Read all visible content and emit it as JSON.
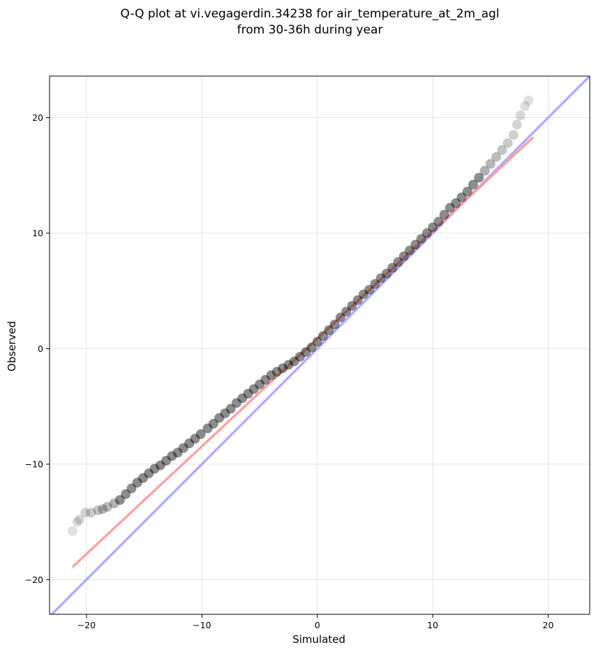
{
  "chart_data": {
    "type": "scatter",
    "title_line1": "Q-Q plot at vi.vegagerdin.34238 for air_temperature_at_2m_agl",
    "title_line2": "from 30-36h during year",
    "xlabel": "Simulated",
    "ylabel": "Observed",
    "xlim": [
      -20.2,
      23.6
    ],
    "ylim": [
      -23.0,
      23.6
    ],
    "x_ticks": [
      -20,
      -10,
      0,
      10,
      20
    ],
    "x_tick_labels": [
      "−20",
      "−10",
      "0",
      "10",
      "20"
    ],
    "y_ticks": [
      -20,
      -10,
      0,
      10,
      20
    ],
    "y_tick_labels": [
      "−20",
      "−10",
      "0",
      "10",
      "20"
    ],
    "grid": true,
    "series": [
      {
        "kind": "quantile-points",
        "color": "#000000",
        "x": [
          -21.2,
          -20.8,
          -20.6,
          -20.1,
          -19.6,
          -19.0,
          -18.6,
          -18.2,
          -17.6,
          -17.1,
          -16.6,
          -16.1,
          -15.6,
          -15.1,
          -14.6,
          -14.1,
          -13.6,
          -13.1,
          -12.6,
          -12.1,
          -11.6,
          -11.1,
          -10.6,
          -10.1,
          -9.5,
          -9.0,
          -8.5,
          -8.0,
          -7.5,
          -7.0,
          -6.5,
          -6.0,
          -5.5,
          -5.0,
          -4.5,
          -4.0,
          -3.5,
          -3.0,
          -2.5,
          -2.0,
          -1.5,
          -1.0,
          -0.5,
          0.0,
          0.5,
          1.0,
          1.5,
          2.0,
          2.5,
          3.0,
          3.5,
          4.0,
          4.5,
          5.0,
          5.5,
          6.0,
          6.5,
          7.0,
          7.5,
          8.0,
          8.5,
          9.0,
          9.5,
          10.0,
          10.5,
          11.0,
          11.5,
          12.0,
          12.5,
          13.0,
          13.5,
          14.0,
          14.5,
          15.0,
          15.5,
          16.0,
          16.5,
          17.0,
          17.3,
          17.6,
          18.0,
          18.3
        ],
        "y": [
          -15.8,
          -15.0,
          -14.8,
          -14.2,
          -14.2,
          -14.0,
          -13.9,
          -13.7,
          -13.4,
          -13.1,
          -12.6,
          -12.1,
          -11.6,
          -11.2,
          -10.8,
          -10.4,
          -10.1,
          -9.7,
          -9.3,
          -9.0,
          -8.6,
          -8.2,
          -7.8,
          -7.4,
          -6.9,
          -6.5,
          -6.0,
          -5.6,
          -5.2,
          -4.7,
          -4.3,
          -3.9,
          -3.5,
          -3.1,
          -2.7,
          -2.3,
          -2.0,
          -1.7,
          -1.4,
          -1.1,
          -0.7,
          -0.3,
          0.1,
          0.6,
          1.1,
          1.6,
          2.1,
          2.7,
          3.2,
          3.7,
          4.2,
          4.7,
          5.1,
          5.6,
          6.1,
          6.5,
          7.0,
          7.5,
          8.0,
          8.5,
          9.0,
          9.5,
          10.0,
          10.5,
          11.0,
          11.6,
          12.2,
          12.6,
          13.1,
          13.6,
          14.2,
          14.8,
          15.4,
          16.0,
          16.6,
          17.2,
          17.8,
          18.5,
          19.4,
          20.2,
          21.0,
          21.5
        ]
      },
      {
        "kind": "identity-line",
        "color": "#aaaaff",
        "x": [
          -23.6,
          23.6
        ],
        "y": [
          -23.6,
          23.6
        ]
      },
      {
        "kind": "fit-line",
        "color": "#ff9999",
        "x": [
          -21.2,
          18.7
        ],
        "y": [
          -18.9,
          18.3
        ]
      }
    ]
  }
}
